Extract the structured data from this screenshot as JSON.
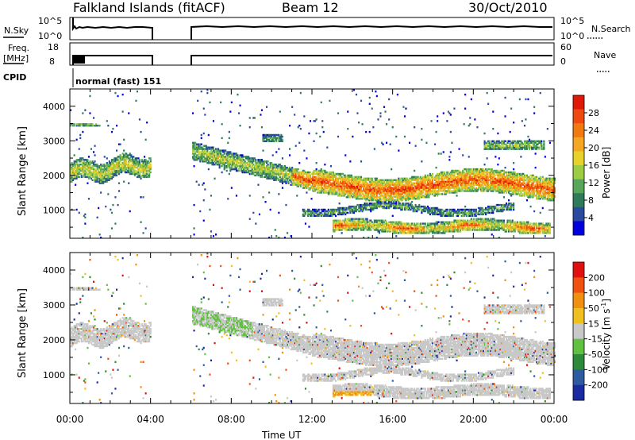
{
  "header": {
    "title": "Falkland Islands (fitACF)",
    "beam": "Beam 12",
    "date": "30/Oct/2010"
  },
  "status_panel": {
    "nsky_label": "N.Sky",
    "nsky_ticks": [
      "10^5",
      "10^0"
    ],
    "nsearch_label": "N.Search",
    "nsearch_ticks": [
      "10^5",
      "10^0"
    ],
    "freq_label_1": "Freq.",
    "freq_label_2": "[MHz]",
    "freq_ticks": [
      "18",
      "8"
    ],
    "nave_label": "Nave",
    "nave_ticks": [
      "60",
      "0"
    ],
    "cpid_label": "CPID",
    "cpid_value": "normal (fast) 151"
  },
  "chart_data": [
    {
      "type": "heatmap",
      "name": "power",
      "xlabel": "",
      "ylabel": "Slant Range [km]",
      "xlim": [
        0,
        24
      ],
      "ylim": [
        180,
        4500
      ],
      "yticks": [
        "1000",
        "2000",
        "3000",
        "4000"
      ],
      "colorbar_label": "Power [dB]",
      "colorbar_ticks": [
        "28",
        "24",
        "20",
        "16",
        "12",
        "8",
        "4"
      ],
      "colorbar_colors": [
        "#0000dd",
        "#2a4aa0",
        "#2e7a5a",
        "#58a65a",
        "#9ccc44",
        "#e6d22a",
        "#f5a623",
        "#f07a10",
        "#ee4a10",
        "#e01808"
      ],
      "data_gaps": [
        [
          4.0,
          6.0
        ]
      ],
      "echo_regions": [
        {
          "t0": 0.0,
          "t1": 4.0,
          "r0": 1700,
          "r1": 2800
        },
        {
          "t0": 6.0,
          "t1": 12.0,
          "r0": 1000,
          "r1": 2900
        },
        {
          "t0": 11.0,
          "t1": 24.0,
          "r0": 900,
          "r1": 2300
        },
        {
          "t0": 13.0,
          "t1": 24.0,
          "r0": 200,
          "r1": 800
        }
      ]
    },
    {
      "type": "heatmap",
      "name": "velocity",
      "xlabel": "Time UT",
      "ylabel": "Slant Range [km]",
      "xlim": [
        0,
        24
      ],
      "ylim": [
        180,
        4500
      ],
      "xticks": [
        "00:00",
        "04:00",
        "08:00",
        "12:00",
        "16:00",
        "20:00",
        "00:00"
      ],
      "yticks": [
        "1000",
        "2000",
        "3000",
        "4000"
      ],
      "colorbar_label": "Velocity [m s",
      "colorbar_label_sup": "-1",
      "colorbar_label_end": "]",
      "colorbar_ticks": [
        "200",
        "100",
        "50",
        "15",
        "-15",
        "-50",
        "-100",
        "-200"
      ],
      "colorbar_colors": [
        "#1a2aa0",
        "#2e5aa0",
        "#2e8a3a",
        "#62c040",
        "#c8c8c8",
        "#f0c020",
        "#f09010",
        "#f05010",
        "#e01010"
      ],
      "data_gaps": [
        [
          4.0,
          6.0
        ]
      ]
    }
  ]
}
